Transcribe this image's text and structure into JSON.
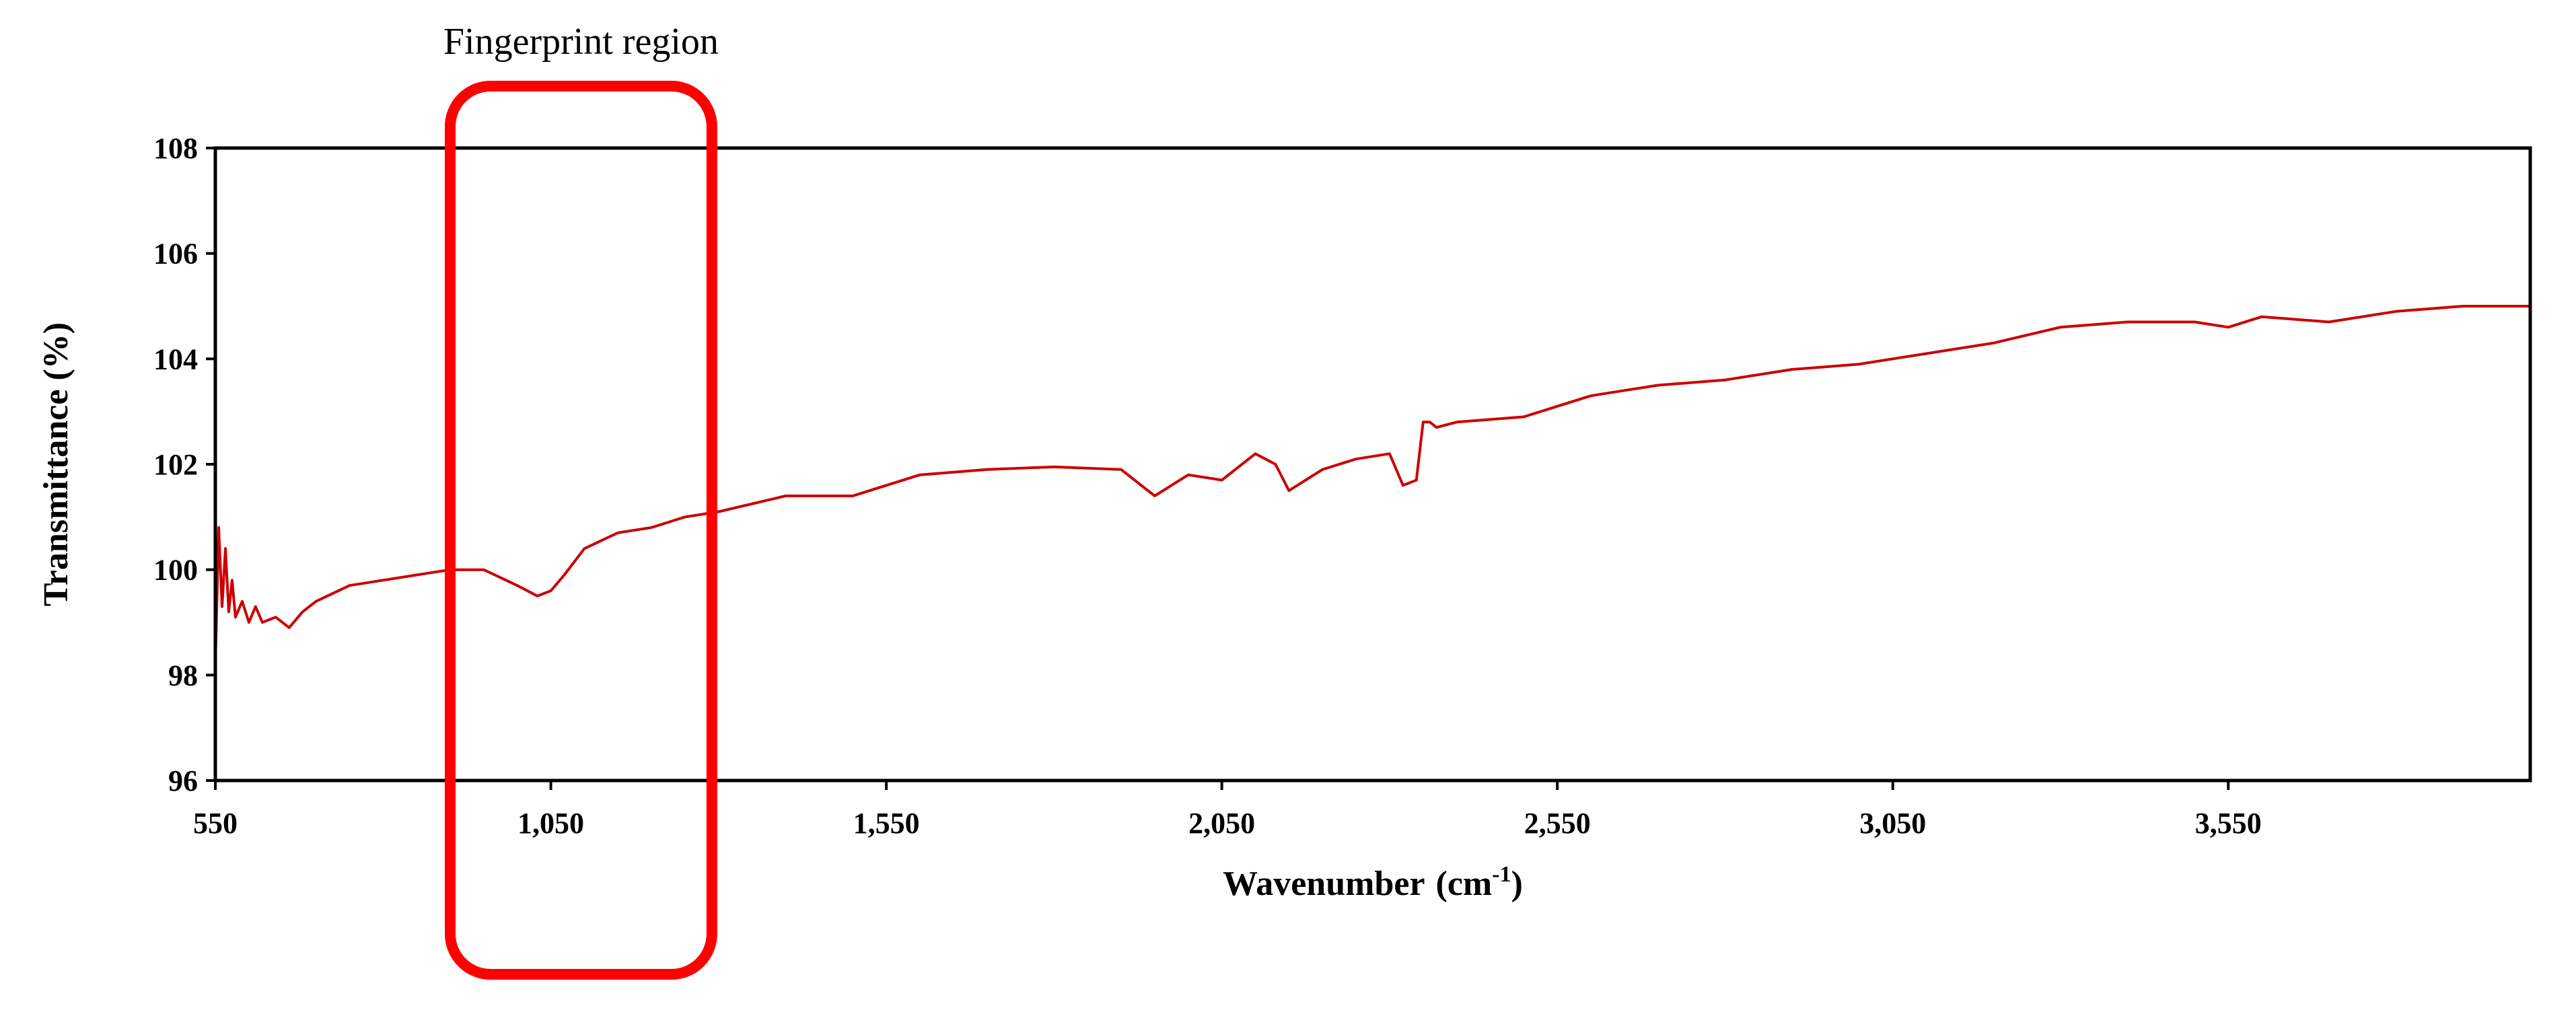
{
  "chart_data": {
    "type": "line",
    "title": "",
    "xlabel": "Wavenumber",
    "xlabel_unit_base": "(cm",
    "xlabel_unit_sup": "-1",
    "xlabel_unit_close": ")",
    "ylabel": "Transmittance (%)",
    "xlim": [
      550,
      4000
    ],
    "ylim": [
      96,
      108
    ],
    "x_ticks": [
      550,
      1050,
      1550,
      2050,
      2550,
      3050,
      3550
    ],
    "x_tick_labels": [
      "550",
      "1,050",
      "1,550",
      "2,050",
      "2,550",
      "3,050",
      "3,550"
    ],
    "y_ticks": [
      96,
      98,
      100,
      102,
      104,
      106,
      108
    ],
    "y_tick_labels": [
      "96",
      "98",
      "100",
      "102",
      "104",
      "106",
      "108"
    ],
    "grid": false,
    "legend": "none",
    "series": [
      {
        "color": "#cc0000",
        "x": [
          550,
          555,
          560,
          565,
          570,
          575,
          580,
          590,
          600,
          610,
          620,
          640,
          660,
          680,
          700,
          750,
          800,
          850,
          900,
          950,
          1000,
          1030,
          1050,
          1070,
          1100,
          1150,
          1200,
          1250,
          1300,
          1400,
          1500,
          1600,
          1700,
          1800,
          1900,
          1950,
          2000,
          2050,
          2100,
          2130,
          2150,
          2200,
          2250,
          2300,
          2320,
          2340,
          2350,
          2360,
          2370,
          2400,
          2450,
          2500,
          2550,
          2600,
          2650,
          2700,
          2800,
          2900,
          3000,
          3050,
          3100,
          3200,
          3300,
          3400,
          3500,
          3550,
          3600,
          3700,
          3800,
          3900,
          4000
        ],
        "y": [
          98.2,
          100.8,
          99.3,
          100.4,
          99.2,
          99.8,
          99.1,
          99.4,
          99.0,
          99.3,
          99.0,
          99.1,
          98.9,
          99.2,
          99.4,
          99.7,
          99.8,
          99.9,
          100.0,
          100.0,
          99.7,
          99.5,
          99.6,
          99.9,
          100.4,
          100.7,
          100.8,
          101.0,
          101.1,
          101.4,
          101.4,
          101.8,
          101.9,
          101.95,
          101.9,
          101.4,
          101.8,
          101.7,
          102.2,
          102.0,
          101.5,
          101.9,
          102.1,
          102.2,
          101.6,
          101.7,
          102.8,
          102.8,
          102.7,
          102.8,
          102.85,
          102.9,
          103.1,
          103.3,
          103.4,
          103.5,
          103.6,
          103.8,
          103.9,
          104.0,
          104.1,
          104.3,
          104.6,
          104.7,
          104.7,
          104.6,
          104.8,
          104.7,
          104.9,
          105.0,
          105.0
        ]
      }
    ],
    "annotations": [
      {
        "text": "Fingerprint region",
        "x_range": [
          900,
          1290
        ],
        "color": "#ff0000"
      }
    ]
  }
}
